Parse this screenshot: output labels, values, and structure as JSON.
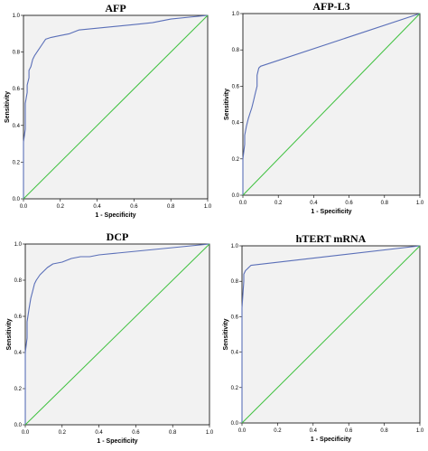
{
  "chart_data": [
    {
      "type": "line",
      "title": "AFP",
      "xlabel": "1 - Specificity",
      "ylabel": "Sensitivity",
      "xlim": [
        0,
        1
      ],
      "ylim": [
        0,
        1
      ],
      "xticks": [
        "0.0",
        "0.2",
        "0.4",
        "0.6",
        "0.8",
        "1.0"
      ],
      "yticks": [
        "0.0",
        "0.2",
        "0.4",
        "0.6",
        "0.8",
        "1.0"
      ],
      "plot_background": "#f2f2f2",
      "colors": {
        "roc": "#5a6fb8",
        "reference": "#3fc13f"
      },
      "series": [
        {
          "role": "roc",
          "x": [
            0,
            0,
            0.01,
            0.01,
            0.02,
            0.02,
            0.03,
            0.03,
            0.04,
            0.05,
            0.06,
            0.08,
            0.1,
            0.12,
            0.15,
            0.2,
            0.25,
            0.3,
            0.4,
            0.5,
            0.6,
            0.7,
            0.8,
            0.9,
            1.0
          ],
          "y": [
            0,
            0.31,
            0.38,
            0.52,
            0.58,
            0.62,
            0.66,
            0.7,
            0.72,
            0.76,
            0.78,
            0.81,
            0.84,
            0.87,
            0.88,
            0.89,
            0.9,
            0.92,
            0.93,
            0.94,
            0.95,
            0.96,
            0.98,
            0.99,
            1.0
          ]
        },
        {
          "role": "reference",
          "x": [
            0,
            1
          ],
          "y": [
            0,
            1
          ]
        }
      ]
    },
    {
      "type": "line",
      "title": "AFP-L3",
      "xlabel": "1 - Specificity",
      "ylabel": "Sensitivity",
      "xlim": [
        0,
        1
      ],
      "ylim": [
        0,
        1
      ],
      "xticks": [
        "0.0",
        "0.2",
        "0.4",
        "0.6",
        "0.8",
        "1.0"
      ],
      "yticks": [
        "0.0",
        "0.2",
        "0.4",
        "0.6",
        "0.8",
        "1.0"
      ],
      "plot_background": "#f2f2f2",
      "colors": {
        "roc": "#5a6fb8",
        "reference": "#3fc13f"
      },
      "series": [
        {
          "role": "roc",
          "x": [
            0,
            0,
            0.01,
            0.01,
            0.02,
            0.03,
            0.04,
            0.05,
            0.06,
            0.07,
            0.08,
            0.08,
            0.09,
            0.1,
            1.0
          ],
          "y": [
            0,
            0.2,
            0.28,
            0.33,
            0.38,
            0.42,
            0.45,
            0.48,
            0.52,
            0.56,
            0.6,
            0.66,
            0.7,
            0.71,
            1.0
          ]
        },
        {
          "role": "reference",
          "x": [
            0,
            1
          ],
          "y": [
            0,
            1
          ]
        }
      ]
    },
    {
      "type": "line",
      "title": "DCP",
      "xlabel": "1 - Specificity",
      "ylabel": "Sensitivity",
      "xlim": [
        0,
        1
      ],
      "ylim": [
        0,
        1
      ],
      "xticks": [
        "0.0",
        "0.2",
        "0.4",
        "0.6",
        "0.8",
        "1.0"
      ],
      "yticks": [
        "0.0",
        "0.2",
        "0.4",
        "0.6",
        "0.8",
        "1.0"
      ],
      "plot_background": "#f2f2f2",
      "colors": {
        "roc": "#5a6fb8",
        "reference": "#3fc13f"
      },
      "series": [
        {
          "role": "roc",
          "x": [
            0,
            0,
            0.01,
            0.01,
            0.02,
            0.03,
            0.04,
            0.05,
            0.06,
            0.08,
            0.1,
            0.12,
            0.15,
            0.2,
            0.25,
            0.3,
            0.35,
            0.4,
            0.5,
            0.6,
            0.7,
            0.8,
            0.9,
            1.0
          ],
          "y": [
            0,
            0.4,
            0.48,
            0.57,
            0.64,
            0.7,
            0.74,
            0.78,
            0.8,
            0.83,
            0.85,
            0.87,
            0.89,
            0.9,
            0.92,
            0.93,
            0.93,
            0.94,
            0.95,
            0.96,
            0.97,
            0.98,
            0.99,
            1.0
          ]
        },
        {
          "role": "reference",
          "x": [
            0,
            1
          ],
          "y": [
            0,
            1
          ]
        }
      ]
    },
    {
      "type": "line",
      "title": "hTERT mRNA",
      "xlabel": "1 - Specificity",
      "ylabel": "Sensitivity",
      "xlim": [
        0,
        1
      ],
      "ylim": [
        0,
        1
      ],
      "xticks": [
        "0.0",
        "0.2",
        "0.4",
        "0.6",
        "0.8",
        "1.0"
      ],
      "yticks": [
        "0.0",
        "0.2",
        "0.4",
        "0.6",
        "0.8",
        "1.0"
      ],
      "plot_background": "#f2f2f2",
      "colors": {
        "roc": "#5a6fb8",
        "reference": "#3fc13f"
      },
      "series": [
        {
          "role": "roc",
          "x": [
            0,
            0,
            0.01,
            0.01,
            0.02,
            0.03,
            0.04,
            0.05,
            1.0
          ],
          "y": [
            0,
            0.65,
            0.8,
            0.84,
            0.86,
            0.87,
            0.88,
            0.89,
            1.0
          ]
        },
        {
          "role": "reference",
          "x": [
            0,
            1
          ],
          "y": [
            0,
            1
          ]
        }
      ]
    }
  ]
}
